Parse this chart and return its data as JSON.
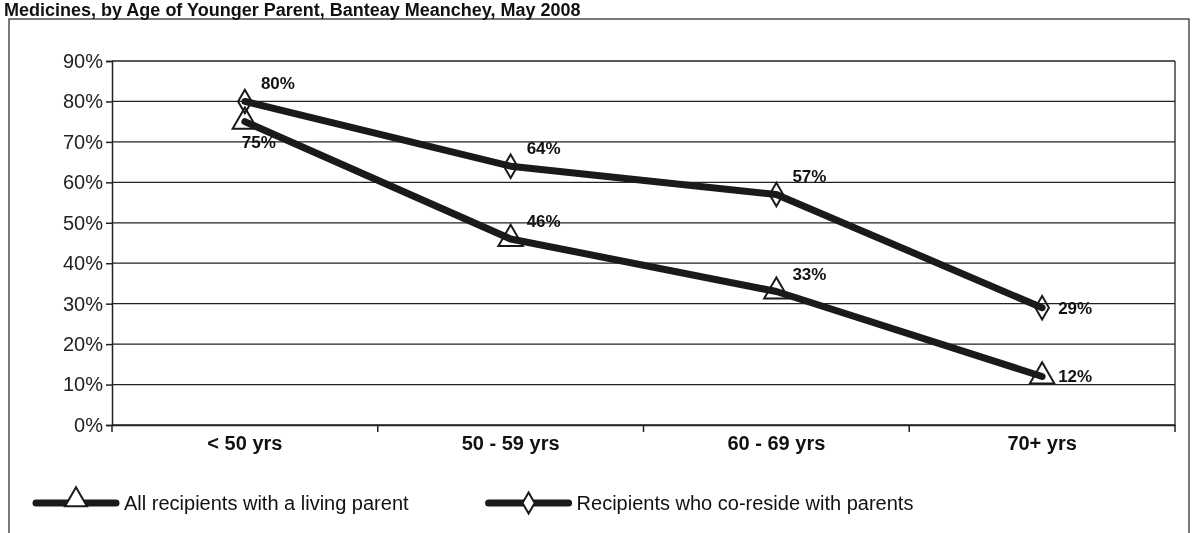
{
  "chart_data": {
    "type": "line",
    "title": "Medicines, by Age of Younger Parent, Banteay Meanchey, May 2008",
    "categories": [
      "< 50 yrs",
      "50 - 59 yrs",
      "60 - 69 yrs",
      "70+ yrs"
    ],
    "series": [
      {
        "name": "All recipients with a living parent",
        "color": "#1a1a1a",
        "marker": "triangle",
        "values": [
          75,
          46,
          33,
          12
        ],
        "value_labels": [
          "75%",
          "46%",
          "33%",
          "12%"
        ]
      },
      {
        "name": "Recipients who co-reside with parents",
        "color": "#1a1a1a",
        "marker": "diamond",
        "values": [
          80,
          64,
          57,
          29
        ],
        "value_labels": [
          "80%",
          "64%",
          "57%",
          "29%"
        ]
      }
    ],
    "ylim": [
      0,
      90
    ],
    "yticks": [
      {
        "value": 0,
        "label": "0%"
      },
      {
        "value": 10,
        "label": "10%"
      },
      {
        "value": 20,
        "label": "20%"
      },
      {
        "value": 30,
        "label": "30%"
      },
      {
        "value": 40,
        "label": "40%"
      },
      {
        "value": 50,
        "label": "50%"
      },
      {
        "value": 60,
        "label": "60%"
      },
      {
        "value": 70,
        "label": "70%"
      },
      {
        "value": 80,
        "label": "80%"
      },
      {
        "value": 90,
        "label": "90%"
      }
    ],
    "grid": "y",
    "legend": "bottom",
    "line_style": "solid"
  }
}
